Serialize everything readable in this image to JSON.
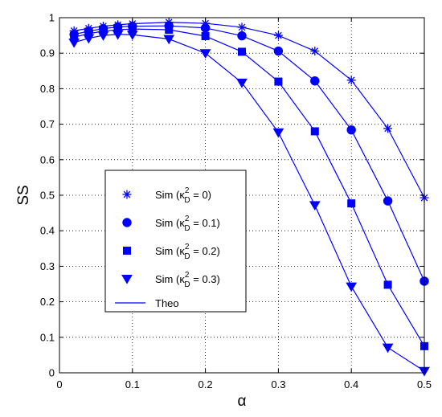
{
  "chart_data": {
    "type": "line",
    "xlabel": "α",
    "ylabel": "SS",
    "xlim": [
      0,
      0.5
    ],
    "ylim": [
      0,
      1
    ],
    "xticks": [
      "0",
      "0.1",
      "0.2",
      "0.3",
      "0.4",
      "0.5"
    ],
    "yticks": [
      "0",
      "0.1",
      "0.2",
      "0.3",
      "0.4",
      "0.5",
      "0.6",
      "0.7",
      "0.8",
      "0.9",
      "1"
    ],
    "grid": true,
    "legend_position": "center-left",
    "theo_label": "Theo",
    "x": [
      0.02,
      0.04,
      0.06,
      0.08,
      0.1,
      0.15,
      0.2,
      0.25,
      0.3,
      0.35,
      0.4,
      0.45,
      0.5
    ],
    "series": [
      {
        "name": "Sim (κ_D^2 = 0)",
        "legend_main": "Sim (κ",
        "legend_sup": "2",
        "legend_sub": "D",
        "legend_tail": " = 0)",
        "marker": "star",
        "values": [
          0.963,
          0.97,
          0.976,
          0.98,
          0.983,
          0.987,
          0.984,
          0.973,
          0.95,
          0.906,
          0.824,
          0.688,
          0.493
        ]
      },
      {
        "name": "Sim (κ_D^2 = 0.1)",
        "legend_main": "Sim (κ",
        "legend_sup": "2",
        "legend_sub": "D",
        "legend_tail": " = 0.1)",
        "marker": "circle",
        "values": [
          0.953,
          0.962,
          0.969,
          0.974,
          0.976,
          0.977,
          0.971,
          0.949,
          0.906,
          0.822,
          0.684,
          0.484,
          0.258
        ]
      },
      {
        "name": "Sim (κ_D^2 = 0.2)",
        "legend_main": "Sim (κ",
        "legend_sup": "2",
        "legend_sub": "D",
        "legend_tail": " = 0.2)",
        "marker": "square",
        "values": [
          0.945,
          0.955,
          0.962,
          0.966,
          0.968,
          0.966,
          0.948,
          0.904,
          0.82,
          0.68,
          0.477,
          0.248,
          0.075
        ]
      },
      {
        "name": "Sim (κ_D^2 = 0.3)",
        "legend_main": "Sim (κ",
        "legend_sup": "2",
        "legend_sub": "D",
        "legend_tail": " = 0.3)",
        "marker": "triangle-down",
        "values": [
          0.93,
          0.942,
          0.95,
          0.953,
          0.952,
          0.94,
          0.9,
          0.817,
          0.677,
          0.472,
          0.243,
          0.071,
          0.005
        ]
      }
    ],
    "colors": {
      "line": "#0000ff",
      "marker": "#0000ff",
      "grid": "#000000",
      "axis": "#000000"
    }
  }
}
